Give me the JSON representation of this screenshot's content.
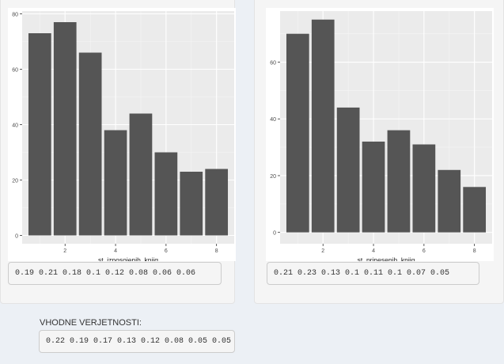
{
  "chart_data": [
    {
      "type": "bar",
      "x": [
        1,
        2,
        3,
        4,
        5,
        6,
        7,
        8
      ],
      "values": [
        73,
        77,
        66,
        38,
        44,
        30,
        23,
        24
      ],
      "xlabel": "st_izposojenih_knjig",
      "ylabel": "",
      "xticks": [
        2,
        4,
        6,
        8
      ],
      "yticks": [
        0,
        20,
        40,
        60,
        80
      ],
      "xlim": [
        0.3,
        8.7
      ],
      "ylim": [
        -3,
        81
      ],
      "grid": true,
      "bar_color": "#555555",
      "panel_bg": "#ebebeb"
    },
    {
      "type": "bar",
      "x": [
        1,
        2,
        3,
        4,
        5,
        6,
        7,
        8
      ],
      "values": [
        70,
        75,
        44,
        32,
        36,
        31,
        22,
        16
      ],
      "xlabel": "st_prinesenih_knjig",
      "ylabel": "",
      "xticks": [
        2,
        4,
        6,
        8
      ],
      "yticks": [
        0,
        20,
        40,
        60
      ],
      "xlim": [
        0.3,
        8.7
      ],
      "ylim": [
        -4,
        78
      ],
      "grid": true,
      "bar_color": "#555555",
      "panel_bg": "#ebebeb"
    }
  ],
  "left_output": "0.19 0.21 0.18 0.1 0.12 0.08 0.06 0.06",
  "right_output": "0.21 0.23 0.13 0.1 0.11 0.1 0.07 0.05",
  "input_probs_label": "VHODNE VERJETNOSTI:",
  "input_probs_output": "0.22 0.19 0.17 0.13 0.12 0.08 0.05 0.05"
}
